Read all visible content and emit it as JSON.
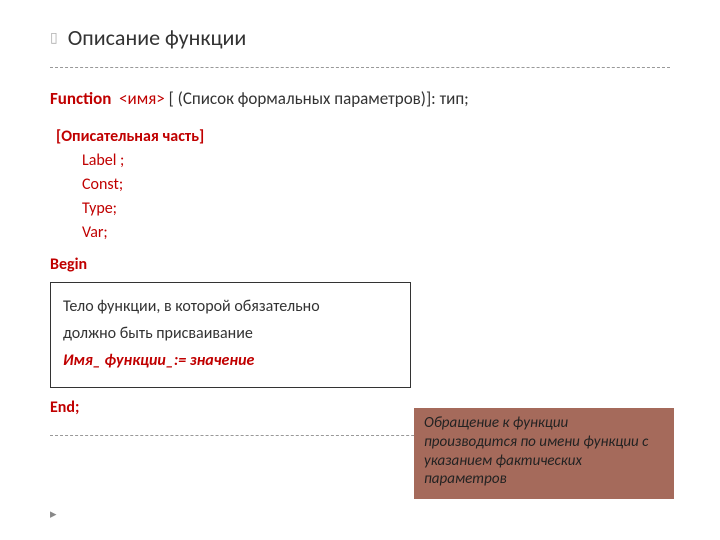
{
  "colors": {
    "keyword": "#c00000",
    "text": "#333333",
    "noteBg": "#a56a5b",
    "borderDashed": "#999999",
    "bg": "#ffffff"
  },
  "fonts": {
    "family": "Calibri, Arial, sans-serif",
    "titleSize": 22,
    "bodySize": 16
  },
  "title": "Описание функции",
  "signature": {
    "kwFunction": "Function",
    "name": "<имя>",
    "rest": " [ (Список формальных параметров)]: тип;"
  },
  "descriptive": {
    "header": "[Описательная часть]",
    "items": [
      "Label ;",
      "Const;",
      "Type;",
      "Var;"
    ]
  },
  "begin": "Begin",
  "bodyBox": {
    "line1": "Тело функции, в которой обязательно",
    "line2": "должно быть присваивание",
    "assign": "Имя_ функции_:= значение"
  },
  "end": "End;",
  "note": "Обращение к функции производится по имени функции с указанием фактических параметров",
  "footerArrowGlyph": "▸"
}
